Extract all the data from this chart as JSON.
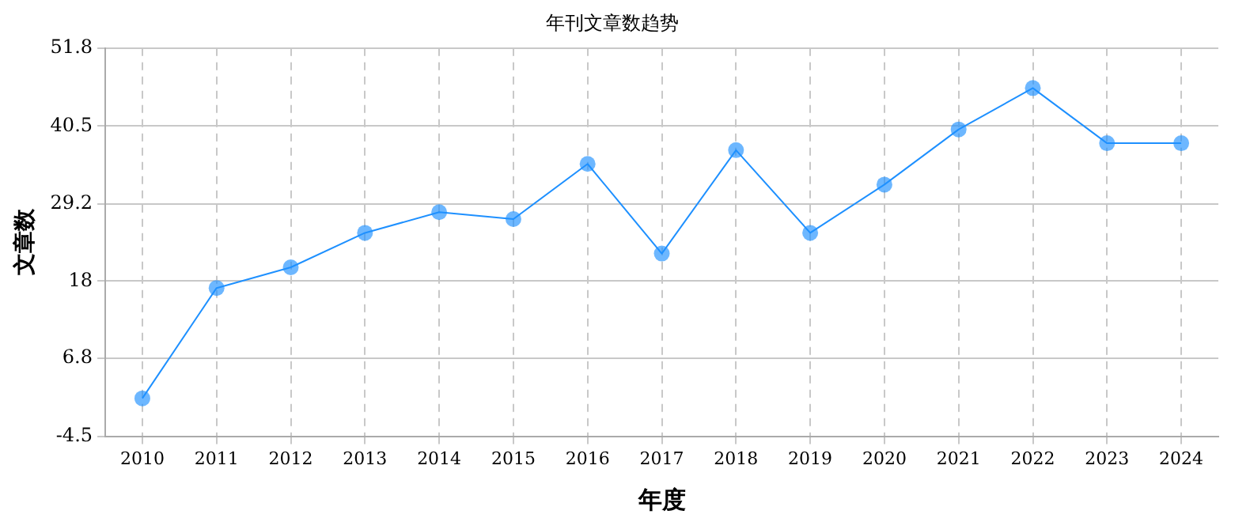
{
  "chart_data": {
    "type": "line",
    "title": "年刊文章数趋势",
    "xlabel": "年度",
    "ylabel": "文章数",
    "categories": [
      "2010",
      "2011",
      "2012",
      "2013",
      "2014",
      "2015",
      "2016",
      "2017",
      "2018",
      "2019",
      "2020",
      "2021",
      "2022",
      "2023",
      "2024"
    ],
    "series": [
      {
        "color": "#1e90ff",
        "values": [
          1,
          17,
          20,
          25,
          28,
          27,
          35,
          22,
          37,
          25,
          32,
          40,
          46,
          38,
          38
        ]
      }
    ],
    "ylim": [
      -4.5,
      51.8
    ],
    "yticks": [
      -4.5,
      6.8,
      18.0,
      29.2,
      40.5,
      51.8
    ],
    "grid": true,
    "marker": "circle",
    "line_style": "solid",
    "legend": false
  }
}
